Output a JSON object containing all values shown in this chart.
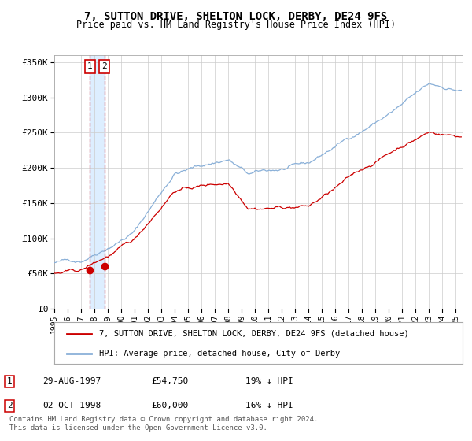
{
  "title": "7, SUTTON DRIVE, SHELTON LOCK, DERBY, DE24 9FS",
  "subtitle": "Price paid vs. HM Land Registry's House Price Index (HPI)",
  "legend_line1": "7, SUTTON DRIVE, SHELTON LOCK, DERBY, DE24 9FS (detached house)",
  "legend_line2": "HPI: Average price, detached house, City of Derby",
  "transaction1_date": "29-AUG-1997",
  "transaction1_price": "£54,750",
  "transaction1_hpi": "19% ↓ HPI",
  "transaction1_year": 1997.66,
  "transaction1_value": 54750,
  "transaction2_date": "02-OCT-1998",
  "transaction2_price": "£60,000",
  "transaction2_hpi": "16% ↓ HPI",
  "transaction2_year": 1998.75,
  "transaction2_value": 60000,
  "footnote": "Contains HM Land Registry data © Crown copyright and database right 2024.\nThis data is licensed under the Open Government Licence v3.0.",
  "hpi_color": "#8ab0d8",
  "price_color": "#cc0000",
  "vline_color": "#cc0000",
  "shade_color": "#ddeeff",
  "bg_color": "#ffffff",
  "grid_color": "#cccccc",
  "ylim": [
    0,
    360000
  ],
  "xlim_start": 1995.0,
  "xlim_end": 2025.5
}
